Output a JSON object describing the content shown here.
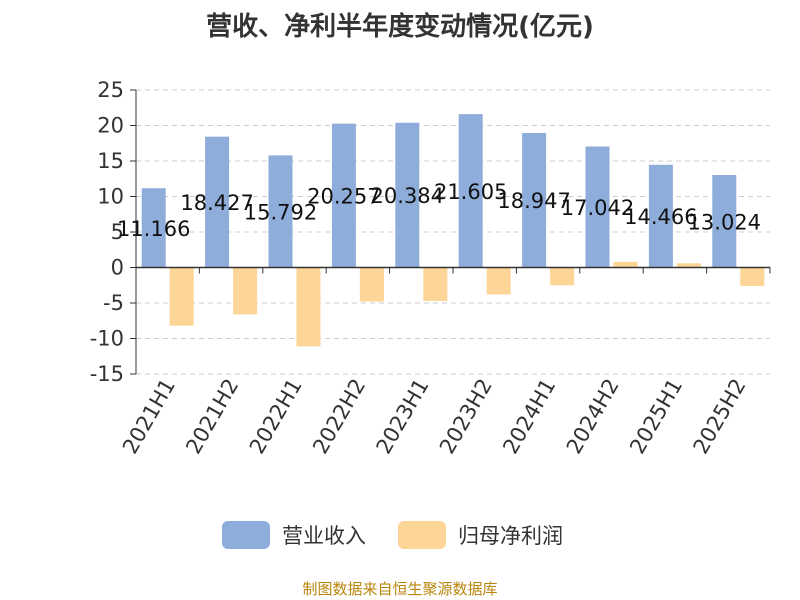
{
  "chart_data": {
    "type": "bar",
    "title": "营收、净利半年度变动情况(亿元)",
    "categories": [
      "2021H1",
      "2021H2",
      "2022H1",
      "2022H2",
      "2023H1",
      "2023H2",
      "2024H1",
      "2024H2",
      "2025H1",
      "2025H2"
    ],
    "series": [
      {
        "name": "营业收入",
        "color": "#8eaddb",
        "values": [
          11.166,
          18.427,
          15.792,
          20.257,
          20.384,
          21.605,
          18.947,
          17.042,
          14.466,
          13.024
        ],
        "labels": [
          "11.166",
          "18.427",
          "15.792",
          "20.257",
          "20.384",
          "21.605",
          "18.947",
          "17.042",
          "14.466",
          "13.024"
        ]
      },
      {
        "name": "归母净利润",
        "color": "#fdd596",
        "values": [
          -8.2,
          -6.6,
          -11.1,
          -4.8,
          -4.7,
          -3.8,
          -2.5,
          0.8,
          0.6,
          -2.6
        ]
      }
    ],
    "yticks": [
      "25",
      "20",
      "15",
      "10",
      "5",
      "0",
      "-5",
      "-10",
      "-15"
    ],
    "ylim": [
      -15,
      25
    ],
    "grid": true,
    "legend_position": "bottom"
  },
  "source": "制图数据来自恒生聚源数据库"
}
